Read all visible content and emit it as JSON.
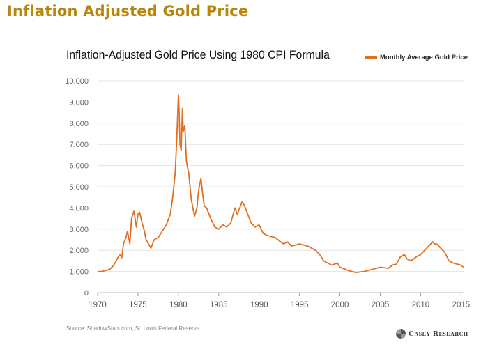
{
  "page": {
    "heading": "Inflation Adjusted Gold Price"
  },
  "chart_data": {
    "type": "line",
    "title": "Inflation-Adjusted Gold Price Using 1980 CPI Formula",
    "xlabel": "",
    "ylabel": "",
    "xlim": [
      1970,
      2015.4
    ],
    "ylim": [
      0,
      10000
    ],
    "xticks": [
      1970,
      1975,
      1980,
      1985,
      1990,
      1995,
      2000,
      2005,
      2010,
      2015
    ],
    "yticks": [
      0,
      1000,
      2000,
      3000,
      4000,
      5000,
      6000,
      7000,
      8000,
      9000,
      10000
    ],
    "ytick_labels": [
      "0",
      "1,000",
      "2,000",
      "3,000",
      "4,000",
      "5,000",
      "6,000",
      "7,000",
      "8,000",
      "9,000",
      "10,000"
    ],
    "grid": "horizontal",
    "legend_position": "top-right",
    "color": "#e07020",
    "series": [
      {
        "name": "Monthly Average Gold Price",
        "x": [
          1970.0,
          1970.5,
          1971.0,
          1971.5,
          1972.0,
          1972.5,
          1972.8,
          1973.0,
          1973.2,
          1973.5,
          1973.7,
          1974.0,
          1974.2,
          1974.5,
          1974.8,
          1975.0,
          1975.2,
          1975.5,
          1975.8,
          1976.0,
          1976.3,
          1976.6,
          1977.0,
          1977.5,
          1978.0,
          1978.5,
          1979.0,
          1979.3,
          1979.6,
          1979.8,
          1980.0,
          1980.1,
          1980.2,
          1980.35,
          1980.5,
          1980.6,
          1980.8,
          1981.0,
          1981.3,
          1981.6,
          1982.0,
          1982.3,
          1982.5,
          1982.8,
          1983.0,
          1983.2,
          1983.5,
          1983.8,
          1984.0,
          1984.5,
          1985.0,
          1985.5,
          1986.0,
          1986.5,
          1987.0,
          1987.3,
          1987.6,
          1987.9,
          1988.2,
          1988.5,
          1989.0,
          1989.5,
          1990.0,
          1990.5,
          1991.0,
          1992.0,
          1993.0,
          1993.5,
          1994.0,
          1995.0,
          1996.0,
          1997.0,
          1997.5,
          1998.0,
          1999.0,
          1999.7,
          2000.0,
          2001.0,
          2002.0,
          2003.0,
          2004.0,
          2005.0,
          2006.0,
          2006.5,
          2007.0,
          2007.5,
          2008.0,
          2008.3,
          2008.8,
          2009.5,
          2010.0,
          2010.5,
          2011.0,
          2011.5,
          2011.7,
          2012.0,
          2012.5,
          2013.0,
          2013.5,
          2014.0,
          2014.5,
          2015.0,
          2015.3
        ],
        "values": [
          1000,
          1000,
          1050,
          1100,
          1300,
          1650,
          1800,
          1650,
          2300,
          2600,
          2900,
          2300,
          3500,
          3850,
          3100,
          3700,
          3800,
          3300,
          2900,
          2500,
          2300,
          2100,
          2500,
          2600,
          2900,
          3200,
          3700,
          4500,
          5600,
          7200,
          9350,
          8500,
          7000,
          6700,
          8700,
          7600,
          7900,
          6200,
          5600,
          4400,
          3600,
          4000,
          4800,
          5400,
          4700,
          4100,
          4000,
          3700,
          3500,
          3100,
          3000,
          3200,
          3100,
          3300,
          4000,
          3700,
          4000,
          4300,
          4100,
          3800,
          3300,
          3100,
          3200,
          2800,
          2700,
          2600,
          2300,
          2400,
          2200,
          2300,
          2200,
          2000,
          1800,
          1500,
          1300,
          1400,
          1200,
          1050,
          950,
          1000,
          1100,
          1200,
          1150,
          1300,
          1350,
          1700,
          1800,
          1600,
          1500,
          1700,
          1800,
          2000,
          2200,
          2400,
          2300,
          2300,
          2100,
          1900,
          1500,
          1400,
          1350,
          1300,
          1200
        ]
      }
    ],
    "source": "Source: ShadowStats.com, St. Louis Federal Reserve"
  },
  "logo": {
    "name": "Casey Research",
    "text": "Casey Research"
  }
}
